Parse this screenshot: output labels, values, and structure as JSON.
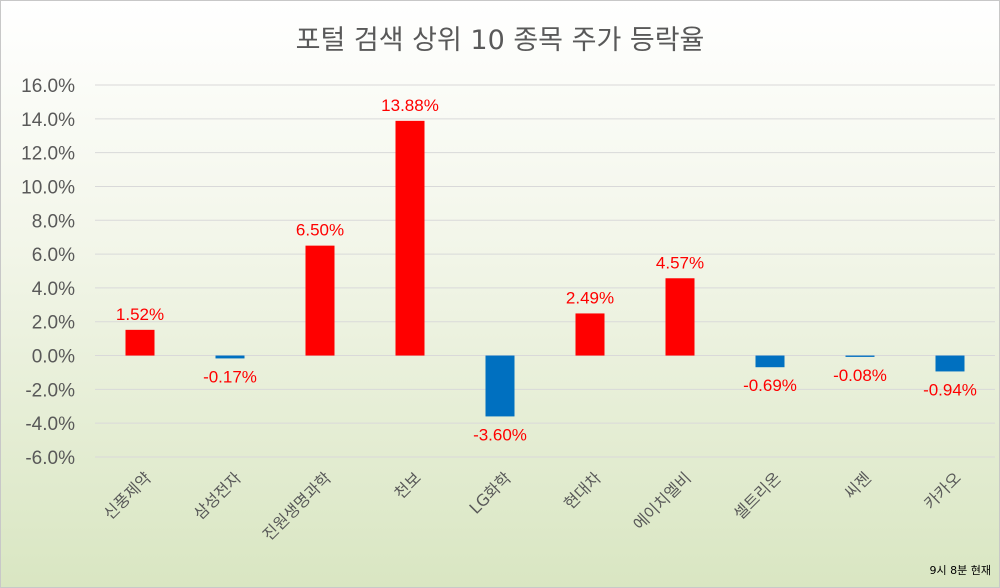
{
  "chart_data": {
    "type": "bar",
    "title": "포털 검색 상위 10 종목 주가 등락율",
    "categories": [
      "신풍제약",
      "삼성전자",
      "진원생명과학",
      "천보",
      "LG화학",
      "현대차",
      "에이치엘비",
      "셀트리온",
      "씨젠",
      "카카오"
    ],
    "values": [
      1.52,
      -0.17,
      6.5,
      13.88,
      -3.6,
      2.49,
      4.57,
      -0.69,
      -0.08,
      -0.94
    ],
    "data_labels": [
      "1.52%",
      "-0.17%",
      "6.50%",
      "13.88%",
      "-3.60%",
      "2.49%",
      "4.57%",
      "-0.69%",
      "-0.08%",
      "-0.94%"
    ],
    "y_ticks": [
      "16.0%",
      "14.0%",
      "12.0%",
      "10.0%",
      "8.0%",
      "6.0%",
      "4.0%",
      "2.0%",
      "0.0%",
      "-2.0%",
      "-4.0%",
      "-6.0%"
    ],
    "ylim": [
      -6,
      16
    ],
    "grid": true,
    "colors": {
      "positive": "#ff0000",
      "negative": "#0070c0",
      "label": "#ff0000"
    },
    "footnote": "9시 8분 현재"
  }
}
